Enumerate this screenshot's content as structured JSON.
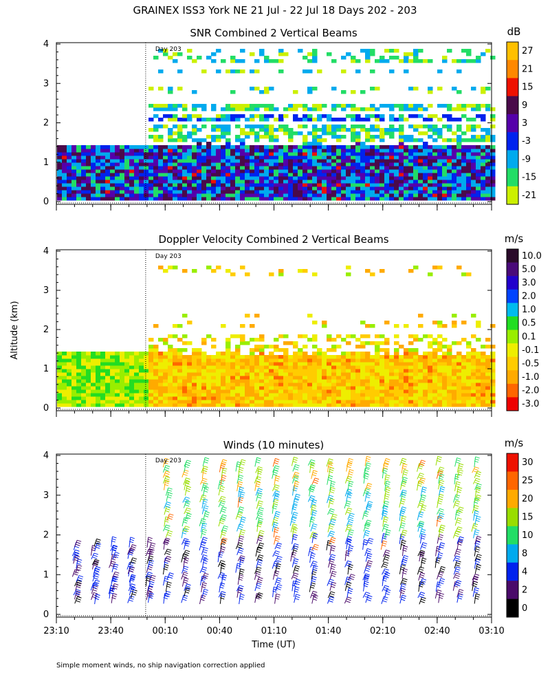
{
  "figure": {
    "title": "GRAINEX ISS3 York NE  21 Jul - 22 Jul 18 Days 202 - 203",
    "ylabel": "Altitude (km)",
    "xlabel": "Time (UT)",
    "footnote": "Simple moment winds, no ship navigation correction applied",
    "day_marker": "Day 203",
    "x_ticks": [
      "23:10",
      "23:40",
      "00:10",
      "00:40",
      "01:10",
      "01:40",
      "02:10",
      "02:40",
      "03:10"
    ],
    "y_ticks": [
      "0",
      "1",
      "2",
      "3",
      "4"
    ]
  },
  "chart_data": [
    {
      "type": "heatmap",
      "title": "SNR Combined 2 Vertical Beams",
      "units": "dB",
      "ylim": [
        0,
        4
      ],
      "x_range": [
        "23:10",
        "03:10"
      ],
      "colorbar_labels": [
        "27",
        "21",
        "15",
        "9",
        "3",
        "-3",
        "-9",
        "-15",
        "-21"
      ],
      "colorbar_colors": [
        "#ffc000",
        "#ff8800",
        "#ee1100",
        "#4a0a4a",
        "#5500aa",
        "#0022ee",
        "#00aaee",
        "#22dd66",
        "#ccf000"
      ],
      "layer_top_before_day203_km": 1.4,
      "layer_top_after_day203_km": 1.35,
      "dominant_low_colors": [
        "#0022ee",
        "#00aaee",
        "#5500aa",
        "#4a0a4a"
      ],
      "dominant_high_colors": [
        "#22dd66",
        "#ccf000",
        "#00aaee"
      ]
    },
    {
      "type": "heatmap",
      "title": "Doppler Velocity Combined 2 Vertical Beams",
      "units": "m/s",
      "ylim": [
        0,
        4
      ],
      "x_range": [
        "23:10",
        "03:10"
      ],
      "colorbar_labels": [
        "10.0",
        "5.0",
        "3.0",
        "2.0",
        "1.0",
        "0.5",
        "0.1",
        "-0.1",
        "-0.5",
        "-1.0",
        "-2.0",
        "-3.0"
      ],
      "colorbar_colors": [
        "#2a0a2a",
        "#4a0a7a",
        "#2200cc",
        "#0044ff",
        "#00bbee",
        "#22dd22",
        "#99ee00",
        "#eeee00",
        "#ffcc00",
        "#ffaa00",
        "#ff6600",
        "#ee0000"
      ],
      "layer_top_before_day203_km": 1.4,
      "layer_top_after_day203_km": 1.3,
      "dominant_colors_before": [
        "#99ee00",
        "#eeee00",
        "#22dd22"
      ],
      "dominant_colors_after": [
        "#ffcc00",
        "#eeee00",
        "#ffaa00"
      ]
    },
    {
      "type": "scatter",
      "title": "Winds (10 minutes)",
      "units": "m/s",
      "ylim": [
        0,
        4
      ],
      "x_range": [
        "23:10",
        "03:10"
      ],
      "colorbar_labels": [
        "30",
        "25",
        "20",
        "15",
        "10",
        "8",
        "4",
        "2",
        "0"
      ],
      "colorbar_colors": [
        "#ee1100",
        "#ff6600",
        "#ffaa00",
        "#99dd00",
        "#22dd66",
        "#00aaee",
        "#0022ee",
        "#4a0a6a",
        "#000000"
      ],
      "profile_times": [
        "23:20",
        "23:30",
        "23:40",
        "23:50",
        "00:00",
        "00:10",
        "00:20",
        "00:30",
        "00:40",
        "00:50",
        "01:00",
        "01:10",
        "01:20",
        "01:30",
        "01:40",
        "01:50",
        "02:00",
        "02:10",
        "02:20",
        "02:30",
        "02:40",
        "02:50",
        "03:00"
      ]
    }
  ]
}
